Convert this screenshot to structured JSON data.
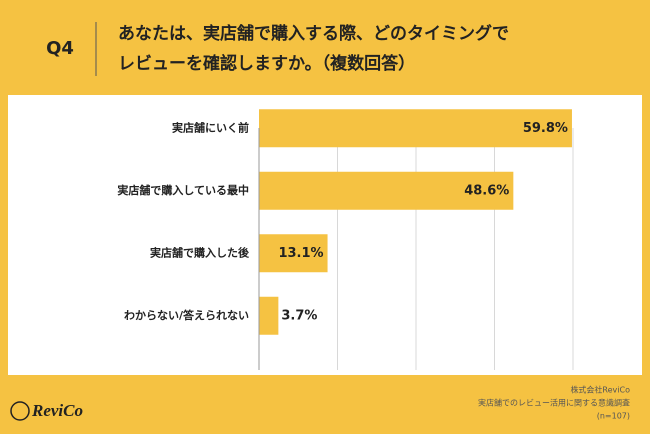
{
  "header": {
    "label": "Q4",
    "title": [
      "あなたは、実店舗で購入する際、どのタイミングで",
      "レビューを確認しますか。（複数回答）"
    ]
  },
  "chart_data": {
    "type": "bar",
    "orientation": "horizontal",
    "categories": [
      "実店舗にいく前",
      "実店舗で購入している最中",
      "実店舗で購入した後",
      "わからない/答えられない"
    ],
    "values": [
      59.8,
      48.6,
      13.1,
      3.7
    ],
    "value_labels": [
      "59.8%",
      "48.6%",
      "13.1%",
      "3.7%"
    ],
    "color": "#f5c242",
    "xlim": [
      0,
      60
    ],
    "xticks": [
      0,
      15,
      30,
      45,
      60
    ],
    "grid": true
  },
  "footer": {
    "company": "株式会社ReviCo",
    "survey": "実店舗でのレビュー活用に関する意識調査",
    "sample": "(n=107)"
  },
  "logo": "ReviCo"
}
